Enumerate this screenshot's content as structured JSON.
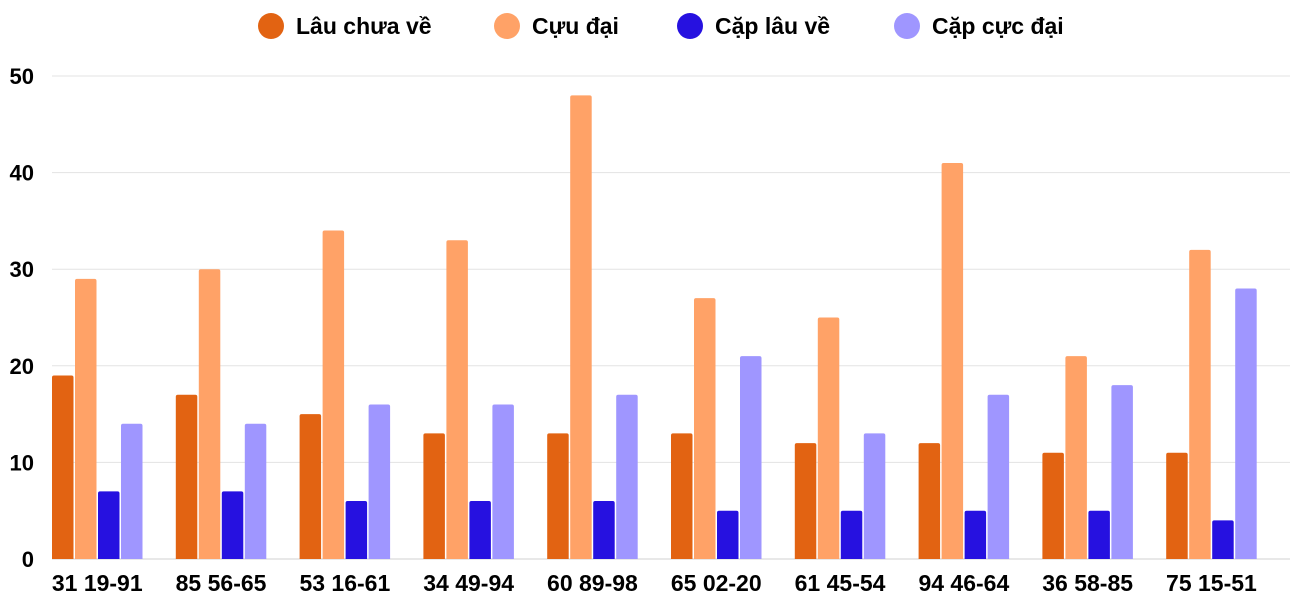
{
  "chart_data": {
    "type": "bar",
    "categories": [
      "31 19-91",
      "85 56-65",
      "53 16-61",
      "34 49-94",
      "60 89-98",
      "65 02-20",
      "61 45-54",
      "94 46-64",
      "36 58-85",
      "75 15-51"
    ],
    "series": [
      {
        "name": "Lâu chưa về",
        "color": "#e26312",
        "values": [
          19,
          17,
          15,
          13,
          13,
          13,
          12,
          12,
          11,
          11
        ]
      },
      {
        "name": "Cựu đại",
        "color": "#ffa267",
        "values": [
          29,
          30,
          34,
          33,
          48,
          27,
          25,
          41,
          21,
          32
        ]
      },
      {
        "name": "Cặp lâu về",
        "color": "#2611e0",
        "values": [
          7,
          7,
          6,
          6,
          6,
          5,
          5,
          5,
          5,
          4
        ]
      },
      {
        "name": "Cặp cực đại",
        "color": "#9f96ff",
        "values": [
          14,
          14,
          16,
          16,
          17,
          21,
          13,
          17,
          18,
          28
        ]
      }
    ],
    "ylim": [
      0,
      50
    ],
    "yticks": [
      0,
      10,
      20,
      30,
      40,
      50
    ],
    "grid": true,
    "legend_position": "top"
  }
}
